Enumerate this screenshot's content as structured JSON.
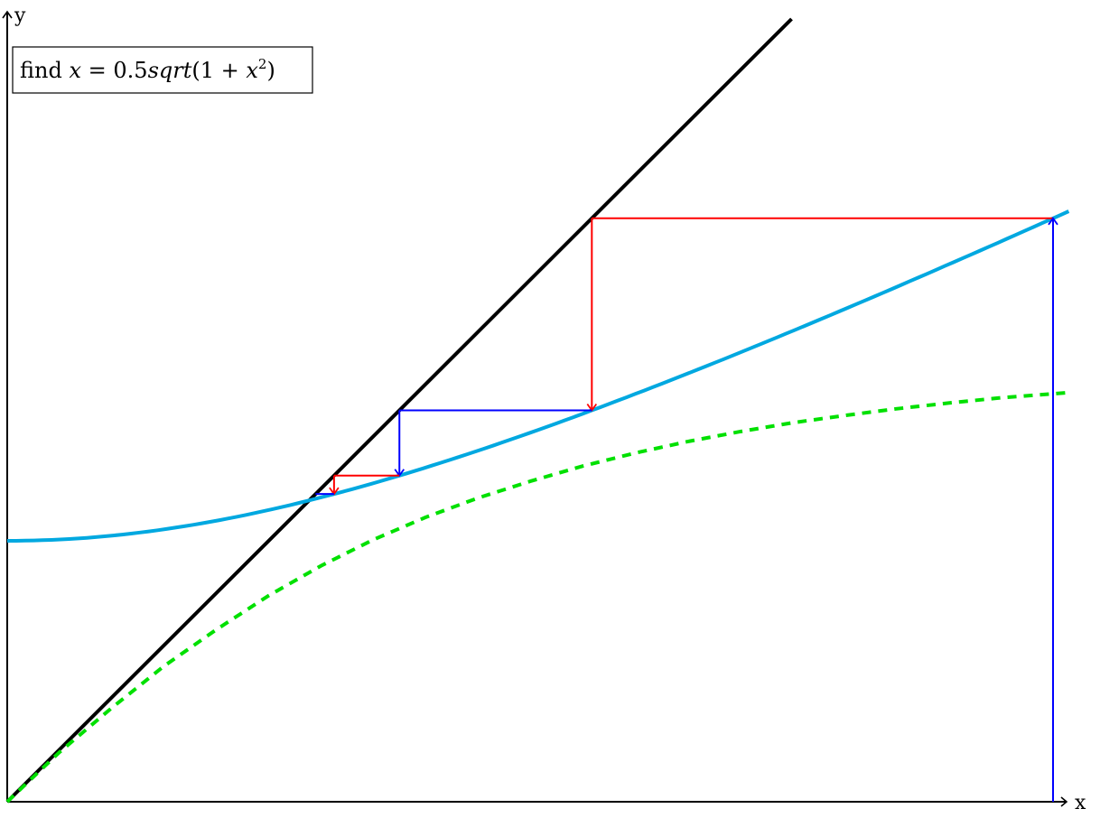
{
  "chart_data": {
    "type": "line",
    "title": "find x = 0.5sqrt(1 + x²)",
    "title_parts": {
      "prefix": "find ",
      "lhs": "x",
      "eq": " = 0.5",
      "fn": "sqrt",
      "open": "(1 + ",
      "var": "x",
      "sup": "2",
      "close": ")"
    },
    "xlabel": "x",
    "ylabel": "y",
    "xlim": [
      0,
      2
    ],
    "ylim": [
      0,
      1.5
    ],
    "grid": false,
    "series": [
      {
        "role": "identity",
        "expr": "y = x",
        "color": "#000000",
        "style": "solid",
        "x_range": [
          0,
          1.5
        ]
      },
      {
        "role": "function",
        "expr": "y = 0.5*sqrt(1+x^2)",
        "color": "#00a8e0",
        "style": "solid",
        "x_range": [
          0,
          2.03
        ]
      },
      {
        "role": "comparison",
        "expr": "green dashed curve (not labelled)",
        "color": "#00e000",
        "style": "dashed",
        "x": [
          0,
          0.1,
          0.2,
          0.3,
          0.4,
          0.5,
          0.6,
          0.7,
          0.8,
          0.9,
          1.0,
          1.1,
          1.2,
          1.3,
          1.4,
          1.5,
          1.6,
          1.7,
          1.8,
          1.9,
          2.03
        ],
        "y": [
          0,
          0.095,
          0.18,
          0.26,
          0.33,
          0.395,
          0.452,
          0.502,
          0.545,
          0.582,
          0.614,
          0.643,
          0.668,
          0.69,
          0.709,
          0.726,
          0.74,
          0.753,
          0.764,
          0.774,
          0.784
        ]
      }
    ],
    "cobweb": {
      "x0": 2.0,
      "steps": [
        {
          "x": 2.0,
          "y": 1.118,
          "arrow": "up",
          "color": "#0000ff"
        },
        {
          "x": 1.118,
          "y": 1.118,
          "arrow": "none",
          "color": "#ff0000"
        },
        {
          "x": 1.118,
          "y": 0.75,
          "arrow": "down",
          "color": "#ff0000"
        },
        {
          "x": 0.75,
          "y": 0.75,
          "arrow": "none",
          "color": "#0000ff"
        },
        {
          "x": 0.75,
          "y": 0.625,
          "arrow": "down",
          "color": "#0000ff"
        },
        {
          "x": 0.625,
          "y": 0.625,
          "arrow": "none",
          "color": "#ff0000"
        },
        {
          "x": 0.625,
          "y": 0.5897,
          "arrow": "down",
          "color": "#ff0000"
        },
        {
          "x": 0.5897,
          "y": 0.5897,
          "arrow": "none",
          "color": "#0000ff"
        }
      ]
    },
    "fixed_point": [
      0.57735,
      0.57735
    ]
  }
}
